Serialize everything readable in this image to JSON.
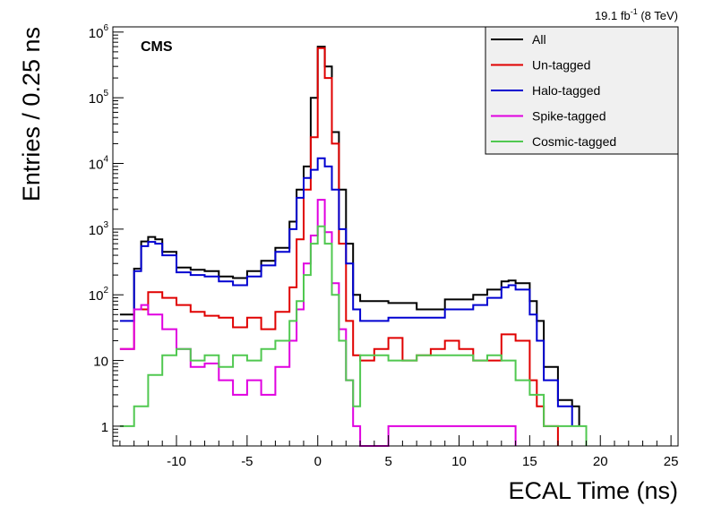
{
  "chart_data": {
    "type": "line",
    "title": "",
    "xlabel": "ECAL Time (ns)",
    "ylabel": "Entries / 0.25 ns",
    "experiment_label": "CMS",
    "lumi_label": {
      "value": "19.1 fb",
      "exponent": "-1",
      "suffix": " (8 TeV)"
    },
    "xlim": [
      -14.5,
      25.5
    ],
    "ylim": [
      0.5,
      1200000
    ],
    "yscale": "log",
    "x_ticks": [
      -10,
      -5,
      0,
      5,
      10,
      15,
      20,
      25
    ],
    "x_tick_labels": [
      "-10",
      "-5",
      "0",
      "5",
      "10",
      "15",
      "20",
      "25"
    ],
    "y_ticks": [
      {
        "value": 1,
        "base": "1",
        "exponent": ""
      },
      {
        "value": 10,
        "base": "10",
        "exponent": ""
      },
      {
        "value": 100,
        "base": "10",
        "exponent": "2"
      },
      {
        "value": 1000,
        "base": "10",
        "exponent": "3"
      },
      {
        "value": 10000,
        "base": "10",
        "exponent": "4"
      },
      {
        "value": 100000,
        "base": "10",
        "exponent": "5"
      },
      {
        "value": 1000000,
        "base": "10",
        "exponent": "6"
      }
    ],
    "grid": false,
    "legend_position": "top-right",
    "series": [
      {
        "name": "All",
        "color": "#000000",
        "points": [
          [
            -14,
            50
          ],
          [
            -13,
            250
          ],
          [
            -12.5,
            650
          ],
          [
            -12,
            760
          ],
          [
            -11.5,
            700
          ],
          [
            -11,
            450
          ],
          [
            -10,
            260
          ],
          [
            -9,
            240
          ],
          [
            -8,
            230
          ],
          [
            -7,
            190
          ],
          [
            -6,
            180
          ],
          [
            -5,
            230
          ],
          [
            -4,
            330
          ],
          [
            -3,
            520
          ],
          [
            -2,
            1300
          ],
          [
            -1.5,
            4000
          ],
          [
            -1,
            9000
          ],
          [
            -0.5,
            100000
          ],
          [
            0,
            600000
          ],
          [
            0.5,
            300000
          ],
          [
            1,
            30000
          ],
          [
            1.5,
            4000
          ],
          [
            2,
            600
          ],
          [
            2.5,
            100
          ],
          [
            3,
            80
          ],
          [
            5,
            75
          ],
          [
            7,
            60
          ],
          [
            9,
            85
          ],
          [
            11,
            100
          ],
          [
            12,
            120
          ],
          [
            13,
            160
          ],
          [
            13.5,
            165
          ],
          [
            14,
            150
          ],
          [
            15,
            80
          ],
          [
            15.5,
            40
          ],
          [
            16,
            8
          ],
          [
            17,
            2.5
          ],
          [
            18,
            2
          ],
          [
            18.5,
            1
          ]
        ]
      },
      {
        "name": "Un-tagged",
        "color": "#e00000",
        "points": [
          [
            -14,
            15
          ],
          [
            -13,
            60
          ],
          [
            -12,
            110
          ],
          [
            -11,
            90
          ],
          [
            -10,
            70
          ],
          [
            -9,
            55
          ],
          [
            -8,
            48
          ],
          [
            -7,
            45
          ],
          [
            -6,
            32
          ],
          [
            -5,
            45
          ],
          [
            -4,
            30
          ],
          [
            -3,
            55
          ],
          [
            -2,
            130
          ],
          [
            -1.5,
            700
          ],
          [
            -1,
            4000
          ],
          [
            -0.5,
            25000
          ],
          [
            0,
            570000
          ],
          [
            0.5,
            200000
          ],
          [
            1,
            20000
          ],
          [
            1.5,
            600
          ],
          [
            2,
            40
          ],
          [
            2.5,
            12
          ],
          [
            3,
            10
          ],
          [
            4,
            15
          ],
          [
            5,
            22
          ],
          [
            6,
            10
          ],
          [
            7,
            12
          ],
          [
            8,
            15
          ],
          [
            9,
            20
          ],
          [
            10,
            15
          ],
          [
            11,
            10
          ],
          [
            12,
            10
          ],
          [
            13,
            25
          ],
          [
            14,
            20
          ],
          [
            15,
            5
          ],
          [
            15.5,
            2
          ],
          [
            16,
            1
          ],
          [
            17,
            0.5
          ]
        ]
      },
      {
        "name": "Halo-tagged",
        "color": "#0000d0",
        "points": [
          [
            -14,
            40
          ],
          [
            -13,
            230
          ],
          [
            -12.5,
            550
          ],
          [
            -12,
            640
          ],
          [
            -11.5,
            600
          ],
          [
            -11,
            400
          ],
          [
            -10,
            220
          ],
          [
            -9,
            200
          ],
          [
            -8,
            190
          ],
          [
            -7,
            160
          ],
          [
            -6,
            140
          ],
          [
            -5,
            190
          ],
          [
            -4,
            280
          ],
          [
            -3,
            450
          ],
          [
            -2,
            1000
          ],
          [
            -1.5,
            3000
          ],
          [
            -1,
            6000
          ],
          [
            -0.5,
            8000
          ],
          [
            0,
            12000
          ],
          [
            0.5,
            9000
          ],
          [
            1,
            4000
          ],
          [
            1.5,
            1000
          ],
          [
            2,
            300
          ],
          [
            2.5,
            60
          ],
          [
            3,
            40
          ],
          [
            5,
            45
          ],
          [
            7,
            45
          ],
          [
            9,
            60
          ],
          [
            11,
            70
          ],
          [
            12,
            90
          ],
          [
            13,
            130
          ],
          [
            13.5,
            140
          ],
          [
            14,
            120
          ],
          [
            15,
            50
          ],
          [
            15.5,
            20
          ],
          [
            16,
            5
          ],
          [
            17,
            2
          ],
          [
            18,
            1
          ]
        ]
      },
      {
        "name": "Spike-tagged",
        "color": "#e000e0",
        "points": [
          [
            -14,
            15
          ],
          [
            -13,
            60
          ],
          [
            -12.5,
            70
          ],
          [
            -12,
            50
          ],
          [
            -11,
            30
          ],
          [
            -10,
            15
          ],
          [
            -9,
            8
          ],
          [
            -8,
            9
          ],
          [
            -7,
            5
          ],
          [
            -6,
            3
          ],
          [
            -5,
            5
          ],
          [
            -4,
            3
          ],
          [
            -3,
            8
          ],
          [
            -2,
            20
          ],
          [
            -1.5,
            60
          ],
          [
            -1,
            300
          ],
          [
            -0.5,
            800
          ],
          [
            0,
            2800
          ],
          [
            0.5,
            900
          ],
          [
            1,
            150
          ],
          [
            1.5,
            30
          ],
          [
            2,
            5
          ],
          [
            2.5,
            1
          ],
          [
            3,
            0.5
          ],
          [
            5,
            1
          ],
          [
            7,
            1
          ],
          [
            9,
            1
          ],
          [
            11,
            1
          ],
          [
            12,
            1
          ],
          [
            13,
            1
          ],
          [
            14,
            0.5
          ]
        ]
      },
      {
        "name": "Cosmic-tagged",
        "color": "#50c850",
        "points": [
          [
            -14,
            1
          ],
          [
            -13,
            2
          ],
          [
            -12,
            6
          ],
          [
            -11,
            12
          ],
          [
            -10,
            15
          ],
          [
            -9,
            10
          ],
          [
            -8,
            12
          ],
          [
            -7,
            8
          ],
          [
            -6,
            12
          ],
          [
            -5,
            10
          ],
          [
            -4,
            15
          ],
          [
            -3,
            20
          ],
          [
            -2,
            40
          ],
          [
            -1.5,
            80
          ],
          [
            -1,
            200
          ],
          [
            -0.5,
            600
          ],
          [
            0,
            1100
          ],
          [
            0.5,
            600
          ],
          [
            1,
            100
          ],
          [
            1.5,
            20
          ],
          [
            2,
            5
          ],
          [
            2.5,
            2
          ],
          [
            3,
            12
          ],
          [
            5,
            10
          ],
          [
            7,
            12
          ],
          [
            9,
            12
          ],
          [
            11,
            10
          ],
          [
            12,
            12
          ],
          [
            13,
            10
          ],
          [
            14,
            5
          ],
          [
            15,
            3
          ],
          [
            16,
            1
          ],
          [
            17,
            1
          ],
          [
            18,
            1
          ],
          [
            19,
            0.5
          ]
        ]
      }
    ]
  }
}
